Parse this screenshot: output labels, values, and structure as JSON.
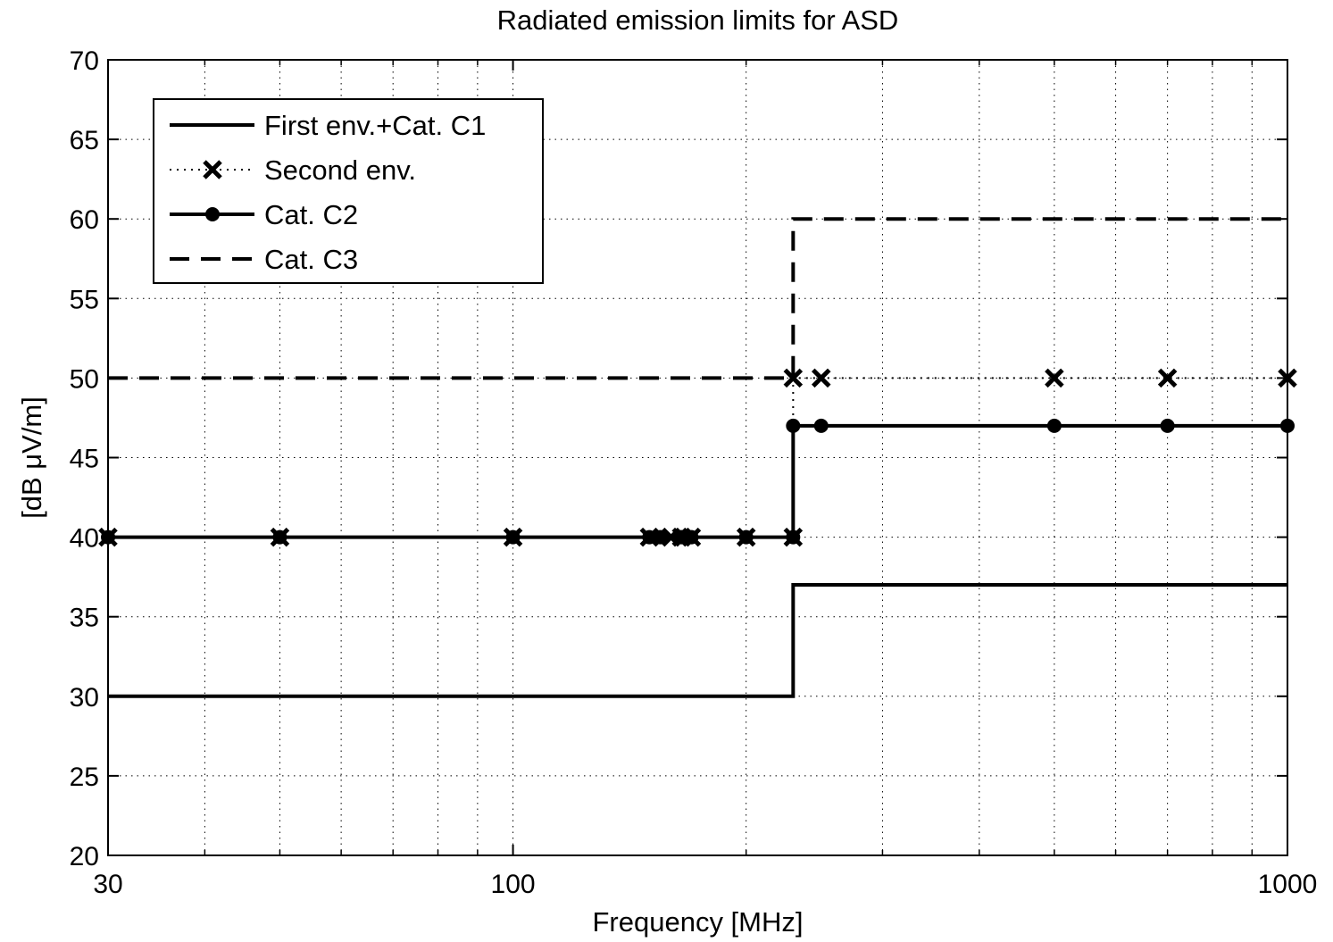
{
  "chart_data": {
    "type": "line",
    "title": "Radiated emission limits for ASD",
    "xlabel": "Frequency [MHz]",
    "ylabel": "[dB μV/m]",
    "xscale": "log",
    "xlim": [
      30,
      1000
    ],
    "ylim": [
      20,
      70
    ],
    "x_ticks": [
      30,
      100,
      1000
    ],
    "x_tick_labels": [
      "30",
      "100",
      "1000"
    ],
    "x_minor_grid": [
      40,
      50,
      60,
      70,
      80,
      90,
      200,
      300,
      400,
      500,
      600,
      700,
      800,
      900
    ],
    "y_ticks": [
      20,
      25,
      30,
      35,
      40,
      45,
      50,
      55,
      60,
      65,
      70
    ],
    "y_tick_labels": [
      "20",
      "25",
      "30",
      "35",
      "40",
      "45",
      "50",
      "55",
      "60",
      "65",
      "70"
    ],
    "grid": true,
    "legend_position": "top-left",
    "series": [
      {
        "name": "First env.+Cat. C1",
        "style": "solid",
        "marker": "none",
        "color": "#000000",
        "x": [
          30,
          230,
          230,
          1000
        ],
        "y": [
          30,
          30,
          37,
          37
        ]
      },
      {
        "name": "Second env.",
        "style": "dotted",
        "marker": "x",
        "color": "#000000",
        "x": [
          30,
          50,
          100,
          155,
          170,
          200,
          230,
          230,
          250,
          500,
          700,
          1000
        ],
        "y": [
          40,
          40,
          40,
          40,
          40,
          40,
          40,
          50,
          50,
          50,
          50,
          50
        ],
        "x_markers": [
          30,
          50,
          100,
          150,
          160,
          165,
          170,
          200,
          230,
          230,
          250,
          500,
          700,
          1000
        ],
        "y_markers": [
          40,
          40,
          40,
          40,
          40,
          40,
          40,
          40,
          40,
          50,
          50,
          50,
          50,
          50
        ]
      },
      {
        "name": "Cat. C2",
        "style": "solid",
        "marker": "circle",
        "color": "#000000",
        "x": [
          30,
          230,
          230,
          1000
        ],
        "y": [
          40,
          40,
          47,
          47
        ],
        "x_markers": [
          30,
          50,
          100,
          150,
          155,
          165,
          170,
          200,
          230,
          230,
          250,
          500,
          700,
          1000
        ],
        "y_markers": [
          40,
          40,
          40,
          40,
          40,
          40,
          40,
          40,
          40,
          47,
          47,
          47,
          47,
          47
        ]
      },
      {
        "name": "Cat. C3",
        "style": "dashed",
        "marker": "none",
        "color": "#000000",
        "x": [
          30,
          230,
          230,
          1000
        ],
        "y": [
          50,
          50,
          60,
          60
        ]
      }
    ]
  }
}
